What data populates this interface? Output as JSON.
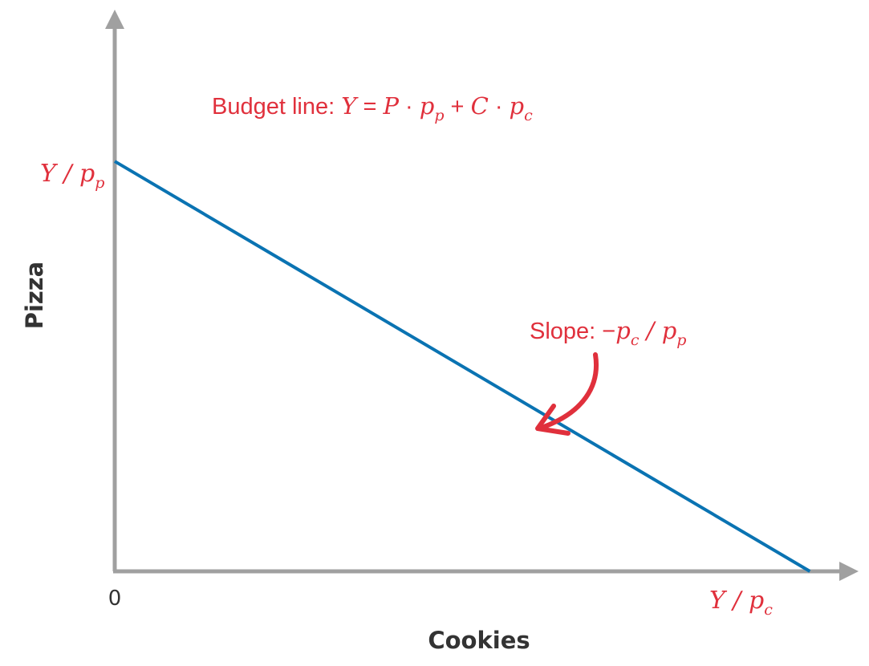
{
  "chart_data": {
    "type": "line",
    "xlabel": "Cookies",
    "ylabel": "Pizza",
    "origin_label": "0",
    "series": [
      {
        "x": [
          0,
          1
        ],
        "y": [
          1,
          0
        ]
      }
    ],
    "xlim": [
      0,
      1.07
    ],
    "ylim": [
      0,
      1.37
    ],
    "grid": false,
    "x_intercept_label": {
      "num": "Y",
      "sep": " / ",
      "p": "p",
      "sub": "c"
    },
    "y_intercept_label": {
      "num": "Y",
      "sep": " / ",
      "p": "p",
      "sub": "p"
    },
    "annotations": {
      "budget_line": {
        "prefix": "Budget line: ",
        "Y": "Y",
        "eq": " = ",
        "P": "P",
        "dot": " · ",
        "p1": "p",
        "p1sub": "p",
        "plus": " + ",
        "C": "C",
        "dot2": " · ",
        "p2": "p",
        "p2sub": "c"
      },
      "slope": {
        "prefix": "Slope: ",
        "minus": "−",
        "p1": "p",
        "p1sub": "c",
        "sep": " / ",
        "p2": "p",
        "p2sub": "p"
      }
    },
    "colors": {
      "line": "#0a73b2",
      "axis": "#a0a0a0",
      "annotation": "#e0303c",
      "text": "#333333"
    }
  }
}
